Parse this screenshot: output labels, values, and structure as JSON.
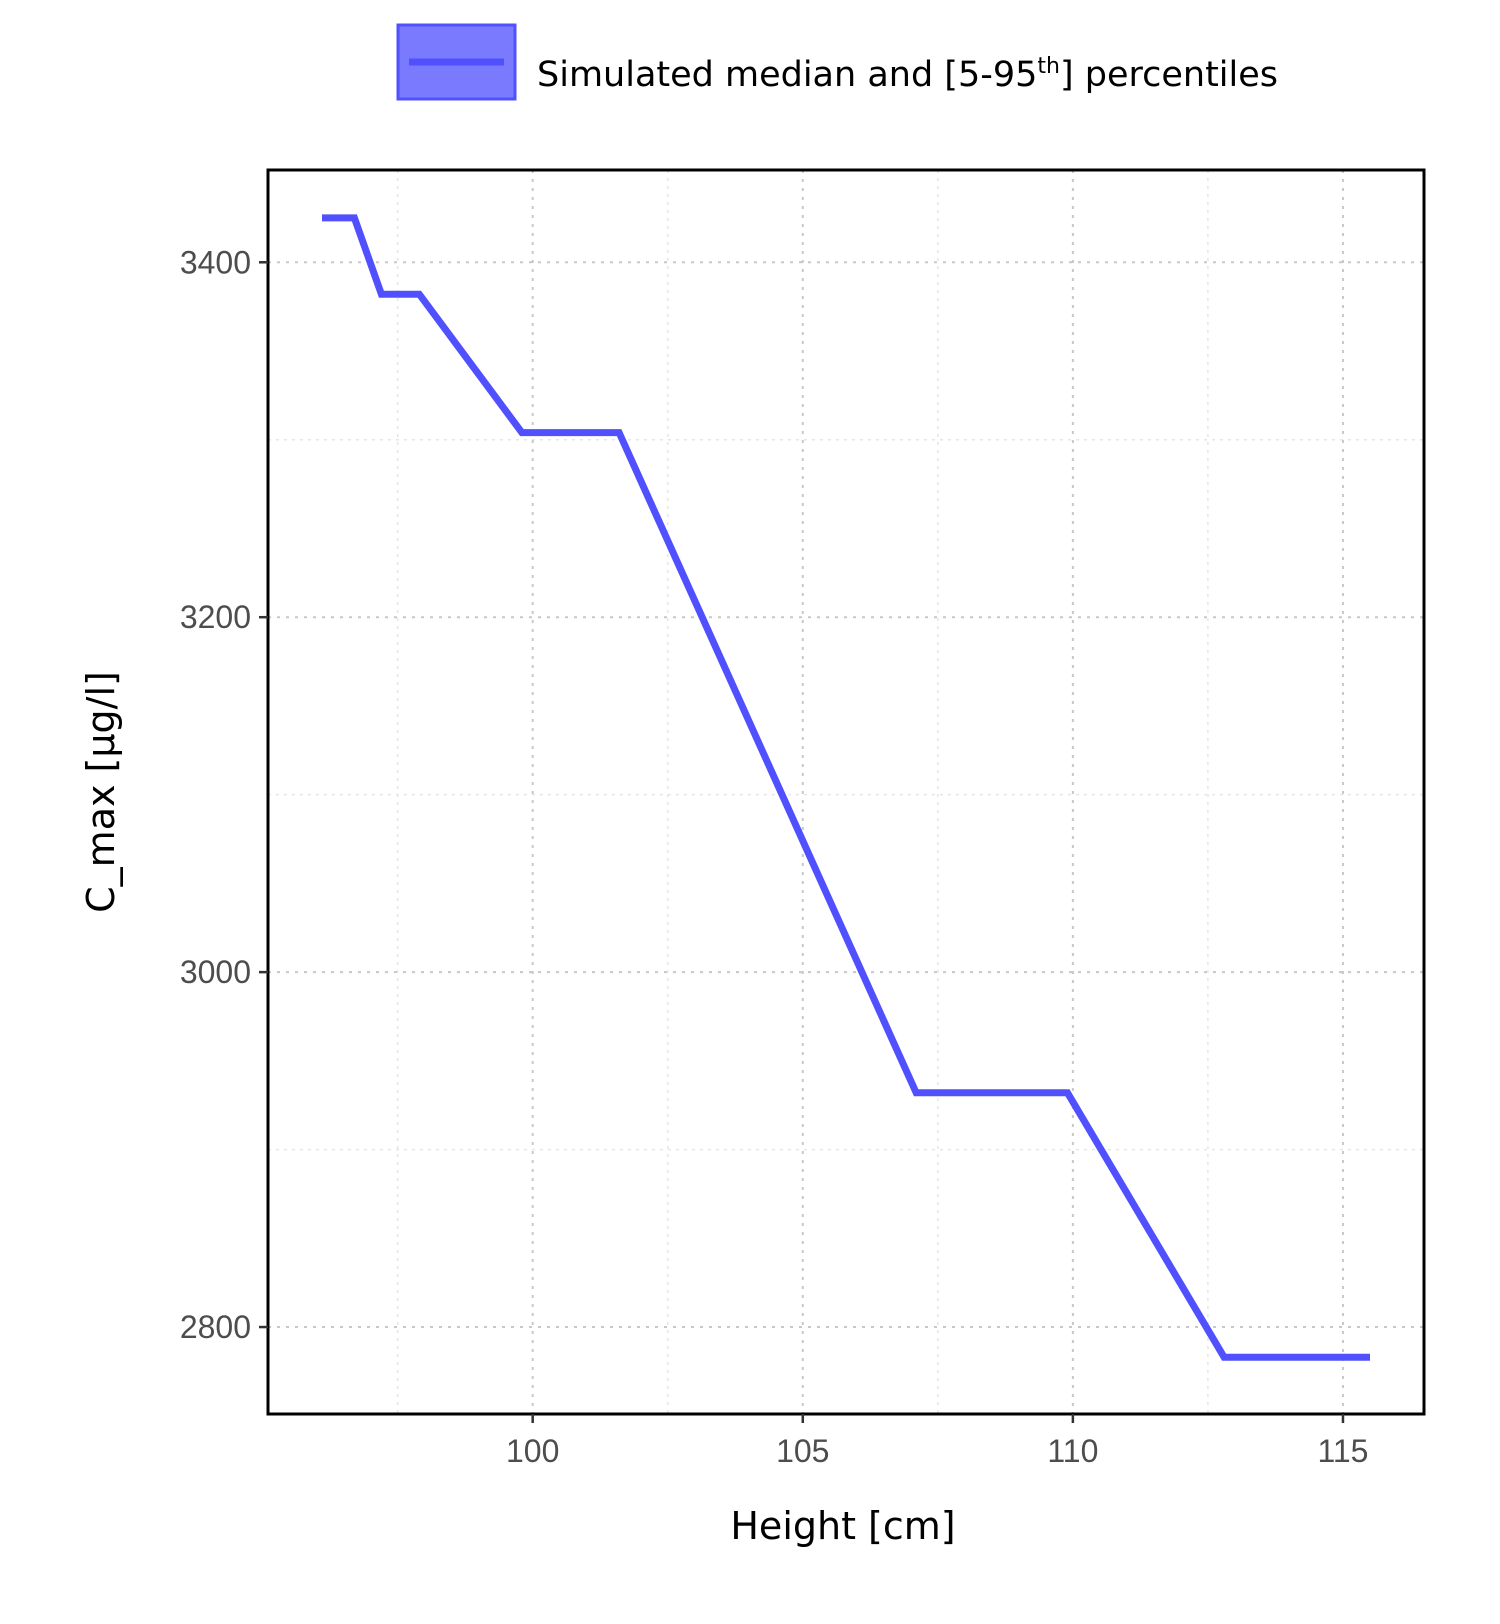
{
  "chart_data": {
    "type": "line",
    "xlabel": "Height [cm]",
    "ylabel": "C_max [µg/l]",
    "xlim": [
      95.1,
      116.5
    ],
    "ylim": [
      2751,
      3452
    ],
    "x_ticks": [
      100,
      105,
      110,
      115
    ],
    "y_ticks": [
      2800,
      3000,
      3200,
      3400
    ],
    "x_minor_ticks": [
      97.5,
      102.5,
      107.5,
      112.5
    ],
    "y_minor_ticks": [
      2900,
      3100,
      3300
    ],
    "grid": true,
    "legend": {
      "position": "top",
      "label_main": "Simulated median and [5-95",
      "label_sup": "th",
      "label_end": "] percentiles"
    },
    "series": [
      {
        "name": "Simulated median and [5-95th] percentiles",
        "color": "#5050ff",
        "x": [
          96.1,
          96.7,
          97.2,
          97.9,
          99.8,
          101.6,
          107.1,
          109.9,
          112.8,
          115.5
        ],
        "y": [
          3425,
          3425,
          3382,
          3382,
          3304,
          3304,
          2932,
          2932,
          2783,
          2783
        ]
      }
    ]
  }
}
